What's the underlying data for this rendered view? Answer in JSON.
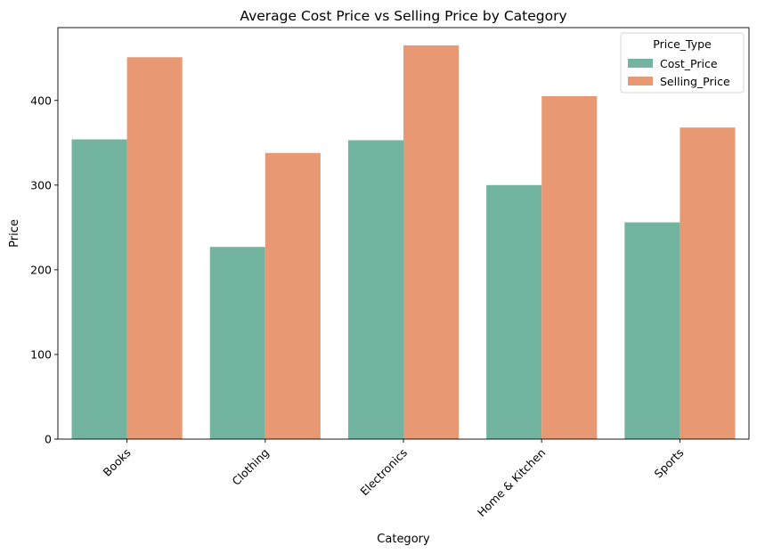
{
  "chart_data": {
    "type": "bar",
    "title": "Average Cost Price vs Selling Price by Category",
    "xlabel": "Category",
    "ylabel": "Price",
    "categories": [
      "Books",
      "Clothing",
      "Electronics",
      "Home & Kitchen",
      "Sports"
    ],
    "series": [
      {
        "name": "Cost_Price",
        "color": "#72b4a0",
        "values": [
          354,
          227,
          353,
          300,
          256
        ]
      },
      {
        "name": "Selling_Price",
        "color": "#e89873",
        "values": [
          451,
          338,
          465,
          405,
          368
        ]
      }
    ],
    "ylim": [
      0,
      486
    ],
    "yticks": [
      0,
      100,
      200,
      300,
      400
    ],
    "legend": {
      "title": "Price_Type",
      "placement": "top-right"
    },
    "grid": false
  }
}
